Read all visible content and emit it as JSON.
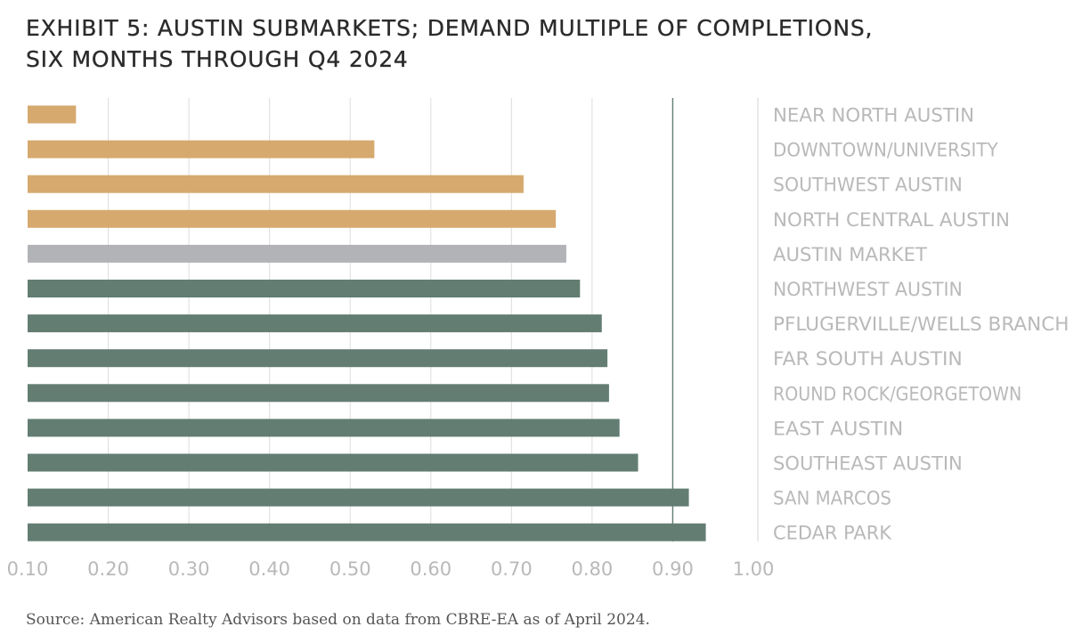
{
  "title_lines": [
    "EXHIBIT 5: AUSTIN SUBMARKETS; DEMAND MULTIPLE OF COMPLETIONS,",
    "SIX MONTHS THROUGH Q4 2024"
  ],
  "source": "Source: American Realty Advisors based on data from CBRE-EA as of April 2024.",
  "colors": {
    "submarket_low": "#d6a96f",
    "market": "#b2b3b7",
    "submarket_high": "#637d72",
    "grid": "#dcdcdc",
    "reference_line": "#637d72",
    "label_text": "#b9b9b9"
  },
  "chart_data": {
    "type": "bar",
    "orientation": "horizontal",
    "title": "EXHIBIT 5: AUSTIN SUBMARKETS; DEMAND MULTIPLE OF COMPLETIONS, SIX MONTHS THROUGH Q4 2024",
    "xlabel": "",
    "ylabel": "",
    "xlim": [
      0.1,
      1.0
    ],
    "xticks": [
      "0.10",
      "0.20",
      "0.30",
      "0.40",
      "0.50",
      "0.60",
      "0.70",
      "0.80",
      "0.90",
      "1.00"
    ],
    "reference_line": 0.9,
    "grid": true,
    "legend": "none",
    "categories": [
      "NEAR NORTH AUSTIN",
      "DOWNTOWN/UNIVERSITY",
      "SOUTHWEST AUSTIN",
      "NORTH CENTRAL AUSTIN",
      "AUSTIN MARKET",
      "NORTHWEST AUSTIN",
      "PFLUGERVILLE/WELLS BRANCH",
      "FAR SOUTH AUSTIN",
      "ROUND ROCK/GEORGETOWN",
      "EAST AUSTIN",
      "SOUTHEAST AUSTIN",
      "SAN MARCOS",
      "CEDAR PARK"
    ],
    "values": [
      0.16,
      0.53,
      0.715,
      0.755,
      0.768,
      0.785,
      0.812,
      0.819,
      0.821,
      0.834,
      0.857,
      0.92,
      0.941
    ],
    "bar_groups": [
      "low",
      "low",
      "low",
      "low",
      "market",
      "high",
      "high",
      "high",
      "high",
      "high",
      "high",
      "high",
      "high"
    ]
  }
}
